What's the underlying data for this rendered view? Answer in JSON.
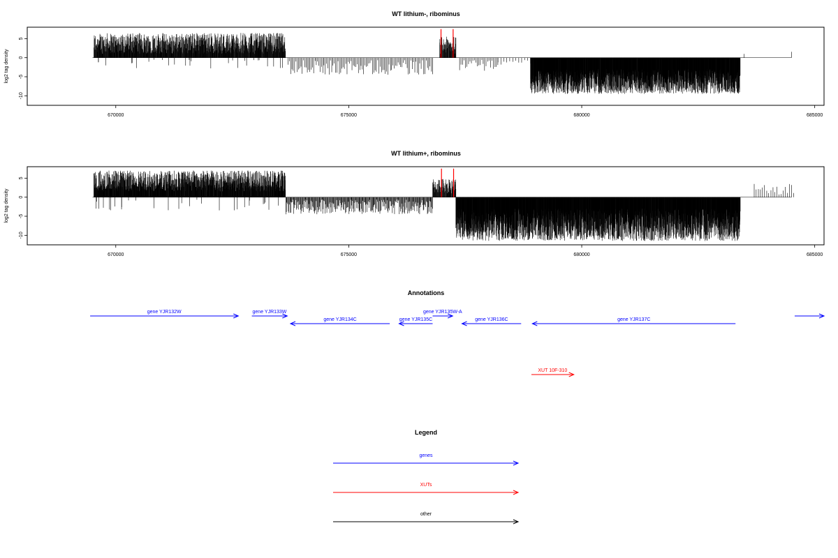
{
  "chart_data": [
    {
      "type": "bar",
      "title": "WT lithium-, ribominus",
      "ylabel": "log2 tag density",
      "xlim": [
        668100,
        685200
      ],
      "ylim": [
        -12.5,
        8
      ],
      "xticks": [
        670000,
        675000,
        680000,
        685000
      ],
      "xtick_labels": [
        "670000",
        "675000",
        "680000",
        "685000"
      ],
      "yticks": [
        5,
        0,
        -5,
        -10
      ],
      "ytick_labels": [
        "5",
        "0",
        "-5",
        "-10"
      ],
      "grid": false,
      "baseline": {
        "from": 669500,
        "to": 684500,
        "y": 0
      },
      "segments": [
        {
          "start": 669530,
          "end": 673640,
          "amp_min": 1.0,
          "amp_max": 6.5,
          "density": 3.0,
          "sign": 1,
          "scatter_rate": 0.03,
          "scatter_max": 2.5
        },
        {
          "start": 673700,
          "end": 676800,
          "amp_min": 0.6,
          "amp_max": 4.5,
          "density": 0.55,
          "sign": -1,
          "scatter_rate": 0,
          "scatter_max": 0
        },
        {
          "start": 676950,
          "end": 677300,
          "amp_min": 1.0,
          "amp_max": 5.5,
          "density": 2.5,
          "sign": 1,
          "scatter_rate": 0,
          "scatter_max": 0
        },
        {
          "start": 677380,
          "end": 678200,
          "amp_min": 0.5,
          "amp_max": 3.5,
          "density": 0.5,
          "sign": -1,
          "scatter_rate": 0,
          "scatter_max": 0
        },
        {
          "start": 678200,
          "end": 678900,
          "amp_min": 0.5,
          "amp_max": 2.0,
          "density": 0.25,
          "sign": -1,
          "scatter_rate": 0,
          "scatter_max": 0
        },
        {
          "start": 678900,
          "end": 683400,
          "amp_min": 3.0,
          "amp_max": 9.5,
          "density": 5.0,
          "sign": -1,
          "scatter_rate": 0,
          "scatter_max": 0
        },
        {
          "start": 683470,
          "end": 683500,
          "amp_min": 1.0,
          "amp_max": 1.0,
          "density": 0.5,
          "sign": 1,
          "scatter_rate": 0,
          "scatter_max": 0
        },
        {
          "start": 684490,
          "end": 684510,
          "amp_min": 1.5,
          "amp_max": 1.6,
          "density": 0.5,
          "sign": 1,
          "scatter_rate": 0,
          "scatter_max": 0
        }
      ],
      "highlights": [
        {
          "x": 676980,
          "y": 7.5,
          "color": "#ff0000"
        },
        {
          "x": 677240,
          "y": 7.5,
          "color": "#ff0000"
        }
      ]
    },
    {
      "type": "bar",
      "title": "WT lithium+, ribominus",
      "ylabel": "log2 tag density",
      "xlim": [
        668100,
        685200
      ],
      "ylim": [
        -12.5,
        8
      ],
      "xticks": [
        670000,
        675000,
        680000,
        685000
      ],
      "xtick_labels": [
        "670000",
        "675000",
        "680000",
        "685000"
      ],
      "yticks": [
        5,
        0,
        -5,
        -10
      ],
      "ytick_labels": [
        "5",
        "0",
        "-5",
        "-10"
      ],
      "grid": false,
      "baseline": {
        "from": 669500,
        "to": 684500,
        "y": 0
      },
      "segments": [
        {
          "start": 669530,
          "end": 673640,
          "amp_min": 1.5,
          "amp_max": 7.0,
          "density": 3.5,
          "sign": 1,
          "scatter_rate": 0.03,
          "scatter_max": 3.0
        },
        {
          "start": 673650,
          "end": 676800,
          "amp_min": 0.6,
          "amp_max": 4.5,
          "density": 1.2,
          "sign": -1,
          "scatter_rate": 0,
          "scatter_max": 0
        },
        {
          "start": 676800,
          "end": 677300,
          "amp_min": 1.0,
          "amp_max": 5.0,
          "density": 2.5,
          "sign": 1,
          "scatter_rate": 0,
          "scatter_max": 0
        },
        {
          "start": 677300,
          "end": 683400,
          "amp_min": 3.0,
          "amp_max": 11.5,
          "density": 5.0,
          "sign": -1,
          "scatter_rate": 0,
          "scatter_max": 0
        },
        {
          "start": 683700,
          "end": 684550,
          "amp_min": 0.5,
          "amp_max": 3.5,
          "density": 0.35,
          "sign": 1,
          "scatter_rate": 0,
          "scatter_max": 0
        }
      ],
      "highlights": [
        {
          "x": 676990,
          "y": 7.5,
          "color": "#ff0000"
        },
        {
          "x": 677250,
          "y": 7.5,
          "color": "#ff0000"
        }
      ]
    }
  ],
  "annotations": {
    "title": "Annotations",
    "genes": [
      {
        "label": "gene YJR132W",
        "start": 669450,
        "end": 672630,
        "strand": "+",
        "row": 0
      },
      {
        "label": "gene YJR133W",
        "start": 672920,
        "end": 673680,
        "strand": "+",
        "row": 0
      },
      {
        "label": "gene YJR134C",
        "start": 673750,
        "end": 675880,
        "strand": "-",
        "row": 1
      },
      {
        "label": "gene YJR135C",
        "start": 676080,
        "end": 676800,
        "strand": "-",
        "row": 1
      },
      {
        "label": "gene YJR135W-A",
        "start": 676800,
        "end": 677230,
        "strand": "+",
        "row": 0
      },
      {
        "label": "gene YJR136C",
        "start": 677430,
        "end": 678700,
        "strand": "-",
        "row": 1
      },
      {
        "label": "gene YJR137C",
        "start": 678940,
        "end": 683300,
        "strand": "-",
        "row": 1
      },
      {
        "label": "",
        "start": 684570,
        "end": 685200,
        "strand": "+",
        "row": 0
      }
    ],
    "xuts": [
      {
        "label": "XUT 10F-310",
        "start": 678920,
        "end": 679830,
        "strand": "+"
      }
    ]
  },
  "legend": {
    "title": "Legend",
    "items": [
      {
        "label": "genes",
        "color": "#0000ff"
      },
      {
        "label": "XUTs",
        "color": "#ff0000"
      },
      {
        "label": "other",
        "color": "#000000"
      }
    ]
  }
}
